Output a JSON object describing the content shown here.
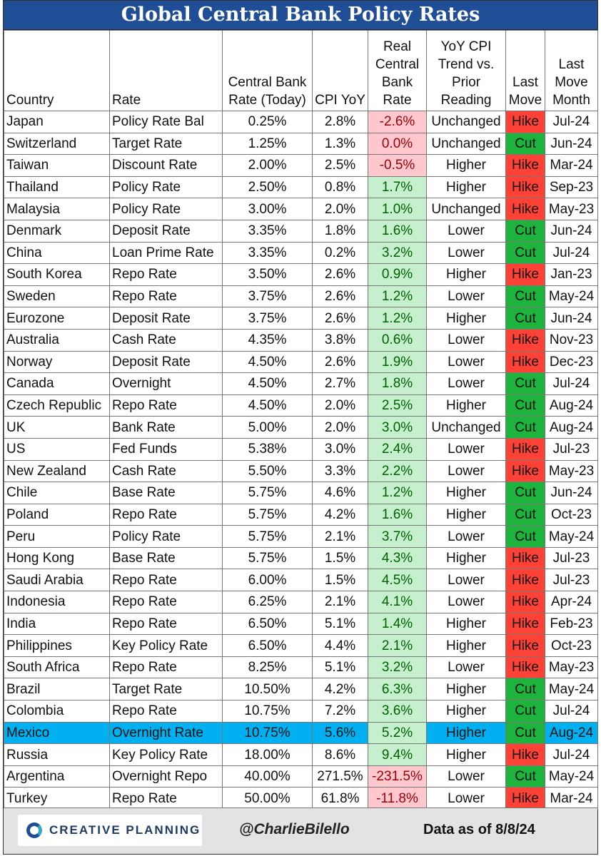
{
  "title": "Global Central Bank Policy Rates",
  "table": {
    "header": [
      "Country",
      "Rate",
      "Central Bank Rate (Today)",
      "CPI YoY",
      "Real Central Bank Rate",
      "YoY CPI Trend vs. Prior Reading",
      "Last Move",
      "Last Move Month"
    ],
    "rows": [
      [
        "Japan",
        "Policy Rate Bal",
        "0.25%",
        "2.8%",
        "-2.6%",
        "Unchanged",
        "Hike",
        "Jul-24"
      ],
      [
        "Switzerland",
        "Target Rate",
        "1.25%",
        "1.3%",
        "0.0%",
        "Unchanged",
        "Cut",
        "Jun-24"
      ],
      [
        "Taiwan",
        "Discount Rate",
        "2.00%",
        "2.5%",
        "-0.5%",
        "Higher",
        "Hike",
        "Mar-24"
      ],
      [
        "Thailand",
        "Policy Rate",
        "2.50%",
        "0.8%",
        "1.7%",
        "Higher",
        "Hike",
        "Sep-23"
      ],
      [
        "Malaysia",
        "Policy Rate",
        "3.00%",
        "2.0%",
        "1.0%",
        "Unchanged",
        "Hike",
        "May-23"
      ],
      [
        "Denmark",
        "Deposit Rate",
        "3.35%",
        "1.8%",
        "1.6%",
        "Lower",
        "Cut",
        "Jun-24"
      ],
      [
        "China",
        "Loan Prime Rate",
        "3.35%",
        "0.2%",
        "3.2%",
        "Lower",
        "Cut",
        "Jul-24"
      ],
      [
        "South Korea",
        "Repo Rate",
        "3.50%",
        "2.6%",
        "0.9%",
        "Higher",
        "Hike",
        "Jan-23"
      ],
      [
        "Sweden",
        "Repo Rate",
        "3.75%",
        "2.6%",
        "1.2%",
        "Lower",
        "Cut",
        "May-24"
      ],
      [
        "Eurozone",
        "Deposit Rate",
        "3.75%",
        "2.6%",
        "1.2%",
        "Higher",
        "Cut",
        "Jun-24"
      ],
      [
        "Australia",
        "Cash Rate",
        "4.35%",
        "3.8%",
        "0.6%",
        "Lower",
        "Hike",
        "Nov-23"
      ],
      [
        "Norway",
        "Deposit Rate",
        "4.50%",
        "2.6%",
        "1.9%",
        "Lower",
        "Hike",
        "Dec-23"
      ],
      [
        "Canada",
        "Overnight",
        "4.50%",
        "2.7%",
        "1.8%",
        "Lower",
        "Cut",
        "Jul-24"
      ],
      [
        "Czech Republic",
        "Repo Rate",
        "4.50%",
        "2.0%",
        "2.5%",
        "Higher",
        "Cut",
        "Aug-24"
      ],
      [
        "UK",
        "Bank Rate",
        "5.00%",
        "2.0%",
        "3.0%",
        "Unchanged",
        "Cut",
        "Aug-24"
      ],
      [
        "US",
        "Fed Funds",
        "5.38%",
        "3.0%",
        "2.4%",
        "Lower",
        "Hike",
        "Jul-23"
      ],
      [
        "New Zealand",
        "Cash Rate",
        "5.50%",
        "3.3%",
        "2.2%",
        "Lower",
        "Hike",
        "May-23"
      ],
      [
        "Chile",
        "Base Rate",
        "5.75%",
        "4.6%",
        "1.2%",
        "Higher",
        "Cut",
        "Jun-24"
      ],
      [
        "Poland",
        "Repo Rate",
        "5.75%",
        "4.2%",
        "1.6%",
        "Higher",
        "Cut",
        "Oct-23"
      ],
      [
        "Peru",
        "Policy Rate",
        "5.75%",
        "2.1%",
        "3.7%",
        "Lower",
        "Cut",
        "May-24"
      ],
      [
        "Hong Kong",
        "Base Rate",
        "5.75%",
        "1.5%",
        "4.3%",
        "Higher",
        "Hike",
        "Jul-23"
      ],
      [
        "Saudi Arabia",
        "Repo Rate",
        "6.00%",
        "1.5%",
        "4.5%",
        "Lower",
        "Hike",
        "Jul-23"
      ],
      [
        "Indonesia",
        "Repo Rate",
        "6.25%",
        "2.1%",
        "4.1%",
        "Lower",
        "Hike",
        "Apr-24"
      ],
      [
        "India",
        "Repo Rate",
        "6.50%",
        "5.1%",
        "1.4%",
        "Higher",
        "Hike",
        "Feb-23"
      ],
      [
        "Philippines",
        "Key Policy Rate",
        "6.50%",
        "4.4%",
        "2.1%",
        "Higher",
        "Hike",
        "Oct-23"
      ],
      [
        "South Africa",
        "Repo Rate",
        "8.25%",
        "5.1%",
        "3.2%",
        "Lower",
        "Hike",
        "May-23"
      ],
      [
        "Brazil",
        "Target Rate",
        "10.50%",
        "4.2%",
        "6.3%",
        "Higher",
        "Cut",
        "May-24"
      ],
      [
        "Colombia",
        "Repo Rate",
        "10.75%",
        "7.2%",
        "3.6%",
        "Higher",
        "Cut",
        "Jul-24"
      ],
      [
        "Mexico",
        "Overnight Rate",
        "10.75%",
        "5.6%",
        "5.2%",
        "Higher",
        "Cut",
        "Aug-24"
      ],
      [
        "Russia",
        "Key Policy Rate",
        "18.00%",
        "8.6%",
        "9.4%",
        "Higher",
        "Hike",
        "Jul-24"
      ],
      [
        "Argentina",
        "Overnight Repo",
        "40.00%",
        "271.5%",
        "-231.5%",
        "Lower",
        "Cut",
        "May-24"
      ],
      [
        "Turkey",
        "Repo Rate",
        "50.00%",
        "61.8%",
        "-11.8%",
        "Lower",
        "Hike",
        "Mar-24"
      ]
    ],
    "real_rate_colors": {
      "positive": "#c6efce",
      "non_positive": "#ffc7ce",
      "positive_text": "#006100",
      "non_positive_text": "#9c0006"
    },
    "move_colors": {
      "Hike": "#ff4136",
      "Cut": "#1db33d"
    },
    "highlight": {
      "row": 28,
      "color": "#00b0f0"
    }
  },
  "footer": {
    "logo": "CREATIVE PLANNING",
    "handle": "@CharlieBilello",
    "as_of": "Data as of 8/8/24"
  }
}
